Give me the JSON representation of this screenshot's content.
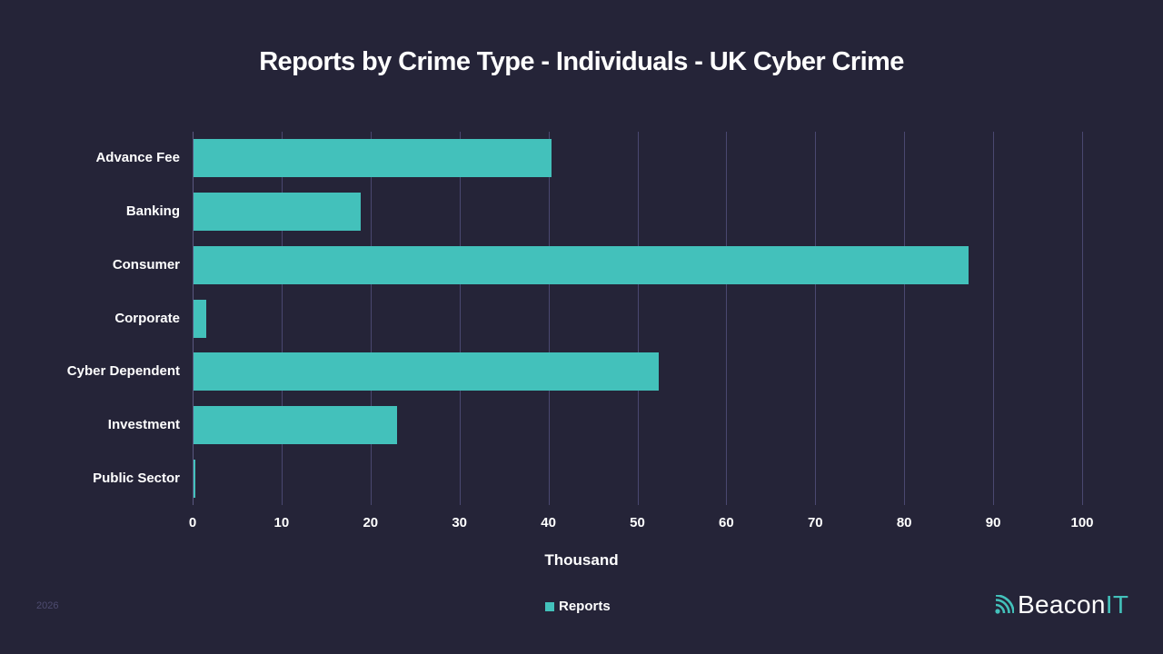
{
  "title": "Reports by Crime Type - Individuals - UK Cyber Crime",
  "x_axis": {
    "title": "Thousand",
    "ticks": [
      "0",
      "10",
      "20",
      "30",
      "40",
      "50",
      "60",
      "70",
      "80",
      "90",
      "100"
    ]
  },
  "legend": {
    "label": "Reports"
  },
  "footer": {
    "year": "2026",
    "brand_main": "Beacon",
    "brand_accent": "IT"
  },
  "colors": {
    "bar": "#43c1bb",
    "background": "#252438",
    "grid": "#4a4870"
  },
  "chart_data": {
    "type": "bar",
    "orientation": "horizontal",
    "title": "Reports by Crime Type - Individuals - UK Cyber Crime",
    "xlabel": "Thousand",
    "ylabel": "",
    "xlim": [
      0,
      100
    ],
    "grid": true,
    "legend_position": "bottom",
    "categories": [
      "Advance Fee",
      "Banking",
      "Consumer",
      "Corporate",
      "Cyber Dependent",
      "Investment",
      "Public Sector"
    ],
    "series": [
      {
        "name": "Reports",
        "values": [
          40.2,
          18.8,
          87.1,
          1.4,
          52.3,
          22.9,
          0.2
        ]
      }
    ]
  }
}
